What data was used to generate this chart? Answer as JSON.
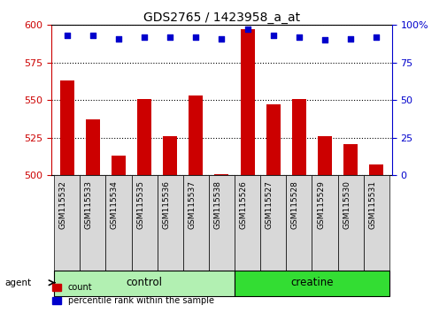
{
  "title": "GDS2765 / 1423958_a_at",
  "samples": [
    "GSM115532",
    "GSM115533",
    "GSM115534",
    "GSM115535",
    "GSM115536",
    "GSM115537",
    "GSM115538",
    "GSM115526",
    "GSM115527",
    "GSM115528",
    "GSM115529",
    "GSM115530",
    "GSM115531"
  ],
  "counts": [
    563,
    537,
    513,
    551,
    526,
    553,
    501,
    597,
    547,
    551,
    526,
    521,
    507
  ],
  "percentiles": [
    93,
    93,
    91,
    92,
    92,
    92,
    91,
    97,
    93,
    92,
    90,
    91,
    92
  ],
  "groups": [
    "control",
    "control",
    "control",
    "control",
    "control",
    "control",
    "control",
    "creatine",
    "creatine",
    "creatine",
    "creatine",
    "creatine",
    "creatine"
  ],
  "group_colors": {
    "control": "#b2f0b2",
    "creatine": "#33dd33"
  },
  "bar_color": "#CC0000",
  "dot_color": "#0000CC",
  "ylim_left": [
    500,
    600
  ],
  "ylim_right": [
    0,
    100
  ],
  "yticks_left": [
    500,
    525,
    550,
    575,
    600
  ],
  "yticks_right": [
    0,
    25,
    50,
    75,
    100
  ],
  "bar_width": 0.55,
  "background_color": "#ffffff"
}
